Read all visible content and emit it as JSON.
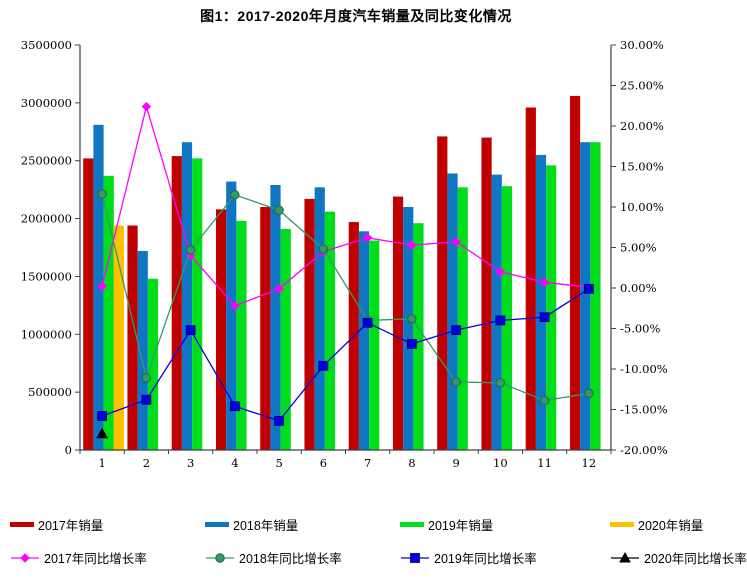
{
  "title": "图1：2017-2020年月度汽车销量及同比变化情况",
  "chart_data": {
    "type": "bar+line combo",
    "categories": [
      "1",
      "2",
      "3",
      "4",
      "5",
      "6",
      "7",
      "8",
      "9",
      "10",
      "11",
      "12"
    ],
    "bar_series": [
      {
        "name": "2017年销量",
        "color": "#C00000",
        "values": [
          2520000,
          1940000,
          2540000,
          2080000,
          2100000,
          2170000,
          1970000,
          2190000,
          2710000,
          2700000,
          2960000,
          3060000
        ]
      },
      {
        "name": "2018年销量",
        "color": "#0E76C3",
        "values": [
          2810000,
          1720000,
          2660000,
          2320000,
          2290000,
          2270000,
          1890000,
          2100000,
          2390000,
          2380000,
          2550000,
          2660000
        ]
      },
      {
        "name": "2019年销量",
        "color": "#00DD1A",
        "values": [
          2370000,
          1480000,
          2520000,
          1980000,
          1910000,
          2060000,
          1810000,
          1960000,
          2270000,
          2280000,
          2460000,
          2660000
        ]
      },
      {
        "name": "2020年销量",
        "color": "#FFC000",
        "values": [
          1940000,
          null,
          null,
          null,
          null,
          null,
          null,
          null,
          null,
          null,
          null,
          null
        ]
      }
    ],
    "line_series": [
      {
        "name": "2017年同比增长率",
        "color": "#FF00FF",
        "marker": "diamond",
        "values": [
          0.2,
          22.4,
          4.0,
          -2.2,
          -0.1,
          4.5,
          6.2,
          5.3,
          5.7,
          2.0,
          0.7,
          0.1
        ]
      },
      {
        "name": "2018年同比增长率",
        "color": "#339966",
        "marker": "circle",
        "values": [
          11.6,
          -11.1,
          4.7,
          11.5,
          9.6,
          4.8,
          -4.0,
          -3.8,
          -11.6,
          -11.7,
          -13.9,
          -13.0
        ]
      },
      {
        "name": "2019年同比增长率",
        "color": "#0000DC",
        "marker": "square",
        "values": [
          -15.8,
          -13.8,
          -5.2,
          -14.6,
          -16.4,
          -9.6,
          -4.3,
          -6.9,
          -5.2,
          -4.0,
          -3.6,
          -0.1
        ]
      },
      {
        "name": "2020年同比增长率",
        "color": "#000000",
        "marker": "triangle",
        "values": [
          -18.0,
          null,
          null,
          null,
          null,
          null,
          null,
          null,
          null,
          null,
          null,
          null
        ]
      }
    ],
    "left_axis": {
      "min": 0,
      "max": 3500000,
      "step": 500000,
      "labels": [
        "3500000",
        "3000000",
        "2500000",
        "2000000",
        "1500000",
        "1000000",
        "500000",
        "0"
      ]
    },
    "right_axis": {
      "min": -20,
      "max": 30,
      "step": 5,
      "labels": [
        "30.00%",
        "25.00%",
        "20.00%",
        "15.00%",
        "10.00%",
        "5.00%",
        "0.00%",
        "-5.00%",
        "-10.00%",
        "-15.00%",
        "-20.00%"
      ]
    },
    "grid": false,
    "legend_position": "bottom"
  },
  "colors": {
    "axis": "#404040",
    "background": "#ffffff"
  }
}
